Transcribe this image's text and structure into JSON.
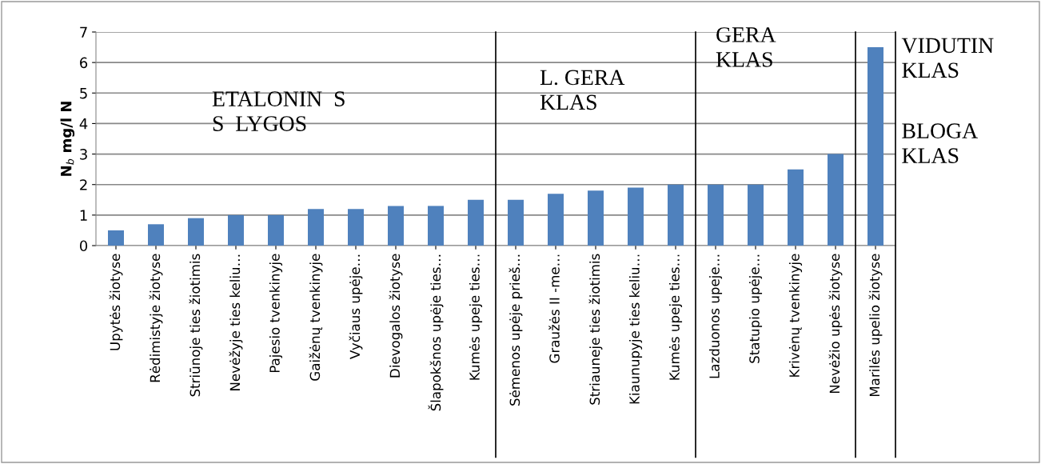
{
  "chart_data": {
    "type": "bar",
    "ylabel": "N$_{b}$ mg/l N",
    "categories": [
      "Upytės žiotyse",
      "Rėdimistyje žiotyse",
      "Striūnoje ties žiotimis",
      "Nevėžyje ties keliu…",
      "Pajesio tvenkinyje",
      "Gaižėnų tvenkinyje",
      "Vyčiaus upėje…",
      "Dievogalos žiotyse",
      "Šlapokšnos upėje ties…",
      "Kumės upeje ties…",
      "Sėmenos upėje prieš…",
      "Graužės II -me…",
      "Striauneje ties žiotimis",
      "Kiaunupyje ties keliu…",
      "Kumės upeje ties…",
      "Lazduonos upeje…",
      "Statupio upėje…",
      "Krivėnų tvenkinyje",
      "Nevėžio upės žiotyse",
      "Marilės upelio žiotyse"
    ],
    "values": [
      0.5,
      0.7,
      0.9,
      1.0,
      1.0,
      1.2,
      1.2,
      1.3,
      1.3,
      1.5,
      1.5,
      1.7,
      1.8,
      1.9,
      2.0,
      2.0,
      2.0,
      2.5,
      3.0,
      6.5
    ],
    "color": "#4f81bd",
    "ylim": [
      0,
      7
    ],
    "yticks": [
      0,
      1,
      2,
      3,
      4,
      5,
      6,
      7
    ],
    "grid": "y",
    "annotations": [
      "ETALONIN  S\nS  LYGOS",
      "L. GERA\nKLAS",
      "GERA\nKLAS",
      "VIDUTIN\nKLAS",
      "BLOGA\nKLAS"
    ]
  }
}
